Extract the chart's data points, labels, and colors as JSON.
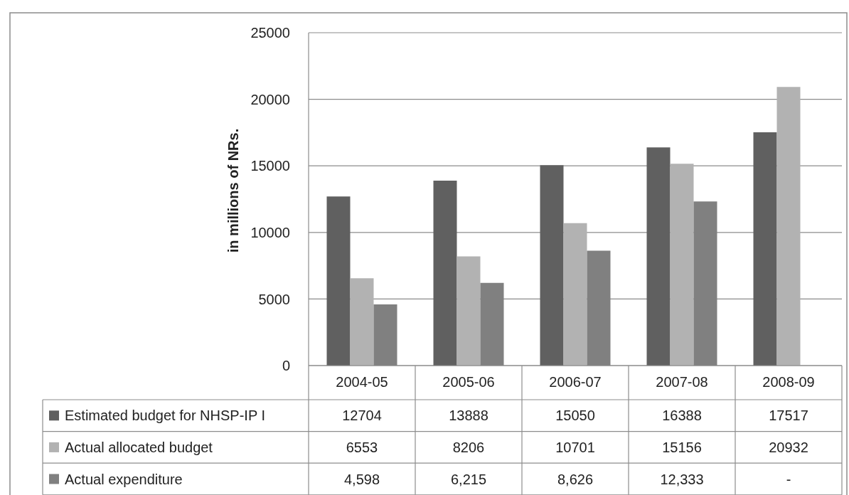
{
  "chart_data": {
    "type": "bar",
    "ylabel": "in millions of NRs.",
    "categories": [
      "2004-05",
      "2005-06",
      "2006-07",
      "2007-08",
      "2008-09"
    ],
    "series": [
      {
        "name": "Estimated budget for NHSP-IP I",
        "color": "#606060",
        "values": [
          12704,
          13888,
          15050,
          16388,
          17517
        ],
        "value_labels": [
          "12704",
          "13888",
          "15050",
          "16388",
          "17517"
        ]
      },
      {
        "name": "Actual allocated budget",
        "color": "#b2b2b2",
        "values": [
          6553,
          8206,
          10701,
          15156,
          20932
        ],
        "value_labels": [
          "6553",
          "8206",
          "10701",
          "15156",
          "20932"
        ]
      },
      {
        "name": "Actual expenditure",
        "color": "#808080",
        "values": [
          4598,
          6215,
          8626,
          12333,
          null
        ],
        "value_labels": [
          "4,598",
          "6,215",
          "8,626",
          "12,333",
          "-"
        ]
      }
    ],
    "ylim": [
      0,
      25000
    ],
    "yticks": [
      0,
      5000,
      10000,
      15000,
      20000,
      25000
    ],
    "grid": "y",
    "legend": "bottom"
  }
}
